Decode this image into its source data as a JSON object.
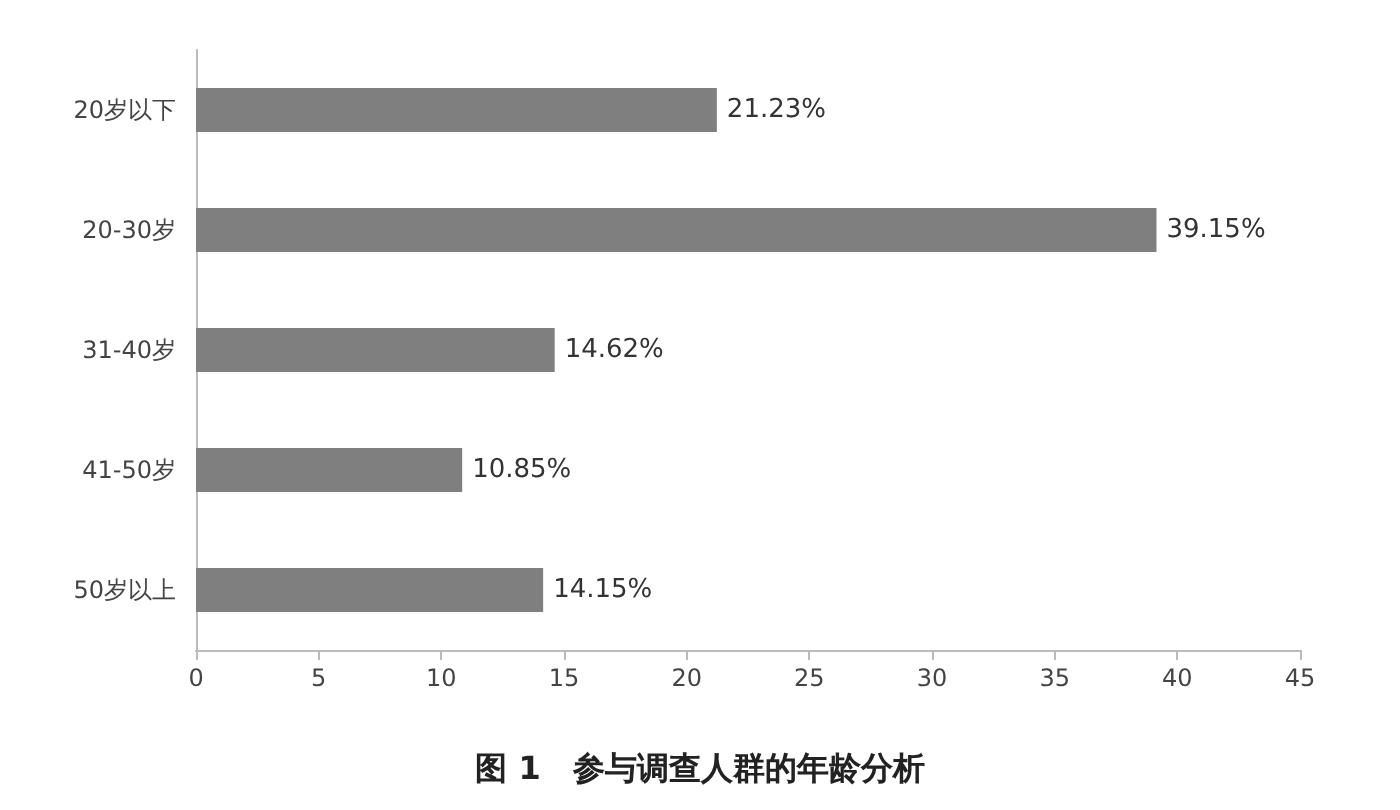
{
  "chart_data": {
    "type": "bar",
    "orientation": "horizontal",
    "title": "图 1　参与调查人群的年龄分析",
    "categories": [
      "20岁以下",
      "20-30岁",
      "31-40岁",
      "41-50岁",
      "50岁以上"
    ],
    "values": [
      21.23,
      39.15,
      14.62,
      10.85,
      14.15
    ],
    "value_labels": [
      "21.23%",
      "39.15%",
      "14.62%",
      "10.85%",
      "14.15%"
    ],
    "color": "#7f7f7f",
    "xlim": [
      0,
      45
    ],
    "xticks": [
      0,
      5,
      10,
      15,
      20,
      25,
      30,
      35,
      40,
      45
    ],
    "grid": false
  }
}
